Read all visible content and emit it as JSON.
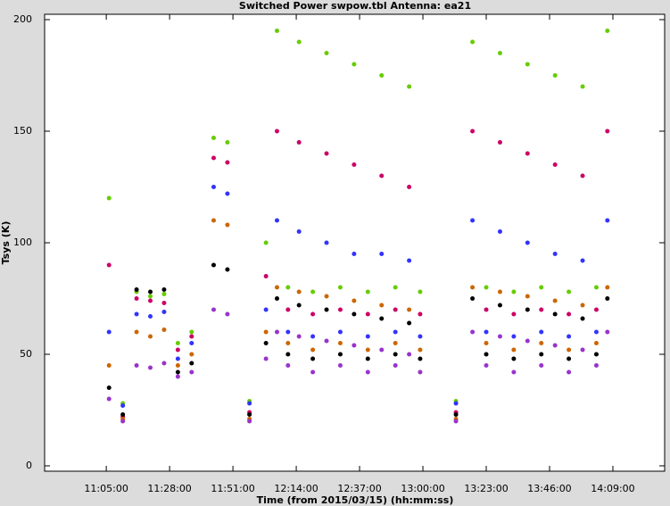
{
  "chart_data": {
    "type": "scatter",
    "title": "Switched Power  swpow.tbl   Antenna: ea21",
    "x_label": "Time (from 2015/03/15) (hh:mm:ss)",
    "y_label": "Tsys (K)",
    "x": [
      666,
      671,
      676,
      681,
      686,
      691,
      696,
      704,
      709,
      717,
      723,
      727,
      731,
      735,
      740,
      745,
      750,
      755,
      760,
      765,
      770,
      775,
      779,
      792,
      798,
      803,
      808,
      813,
      818,
      823,
      828,
      833,
      838,
      843,
      847
    ],
    "series": [
      {
        "name": "green",
        "color": "#66cc00",
        "values": [
          120,
          28,
          78,
          76,
          77,
          55,
          60,
          147,
          145,
          29,
          100,
          195,
          80,
          190,
          78,
          185,
          80,
          180,
          78,
          175,
          80,
          170,
          78,
          29,
          190,
          80,
          185,
          78,
          180,
          80,
          175,
          78,
          170,
          80,
          195
        ]
      },
      {
        "name": "magenta",
        "color": "#cc0066",
        "values": [
          90,
          22,
          75,
          74,
          73,
          52,
          58,
          138,
          136,
          24,
          85,
          150,
          70,
          145,
          68,
          140,
          70,
          135,
          68,
          130,
          70,
          125,
          68,
          24,
          150,
          70,
          145,
          68,
          140,
          70,
          135,
          68,
          130,
          70,
          150
        ]
      },
      {
        "name": "blue",
        "color": "#3333ff",
        "values": [
          60,
          27,
          68,
          67,
          69,
          48,
          55,
          125,
          122,
          28,
          70,
          110,
          60,
          105,
          58,
          100,
          60,
          95,
          58,
          95,
          60,
          92,
          58,
          28,
          110,
          60,
          105,
          58,
          100,
          60,
          95,
          58,
          92,
          60,
          110
        ]
      },
      {
        "name": "orange",
        "color": "#cc6600",
        "values": [
          45,
          21,
          60,
          58,
          61,
          45,
          50,
          110,
          108,
          21,
          60,
          80,
          55,
          78,
          52,
          76,
          55,
          74,
          52,
          72,
          55,
          70,
          52,
          21,
          80,
          55,
          78,
          52,
          76,
          55,
          74,
          52,
          72,
          55,
          80
        ]
      },
      {
        "name": "black",
        "color": "#000000",
        "values": [
          35,
          23,
          79,
          78,
          79,
          42,
          46,
          90,
          88,
          23,
          55,
          75,
          50,
          72,
          48,
          70,
          50,
          68,
          48,
          66,
          50,
          64,
          48,
          23,
          75,
          50,
          72,
          48,
          70,
          50,
          68,
          48,
          66,
          50,
          75
        ]
      },
      {
        "name": "purple",
        "color": "#9933cc",
        "values": [
          30,
          20,
          45,
          44,
          46,
          40,
          42,
          70,
          68,
          20,
          48,
          60,
          45,
          58,
          42,
          56,
          45,
          54,
          42,
          52,
          45,
          50,
          42,
          20,
          60,
          45,
          58,
          42,
          56,
          45,
          54,
          42,
          52,
          45,
          60
        ]
      }
    ],
    "xlim": [
      642.6,
      867.8
    ],
    "ylim": [
      -2.4,
      202.4
    ],
    "xticks": [
      {
        "value": 665,
        "label": "11:05:00"
      },
      {
        "value": 688,
        "label": "11:28:00"
      },
      {
        "value": 711,
        "label": "11:51:00"
      },
      {
        "value": 734,
        "label": "12:14:00"
      },
      {
        "value": 757,
        "label": "12:37:00"
      },
      {
        "value": 780,
        "label": "13:00:00"
      },
      {
        "value": 803,
        "label": "13:23:00"
      },
      {
        "value": 826,
        "label": "13:46:00"
      },
      {
        "value": 849,
        "label": "14:09:00"
      }
    ],
    "yticks": [
      0,
      50,
      100,
      150,
      200
    ]
  }
}
